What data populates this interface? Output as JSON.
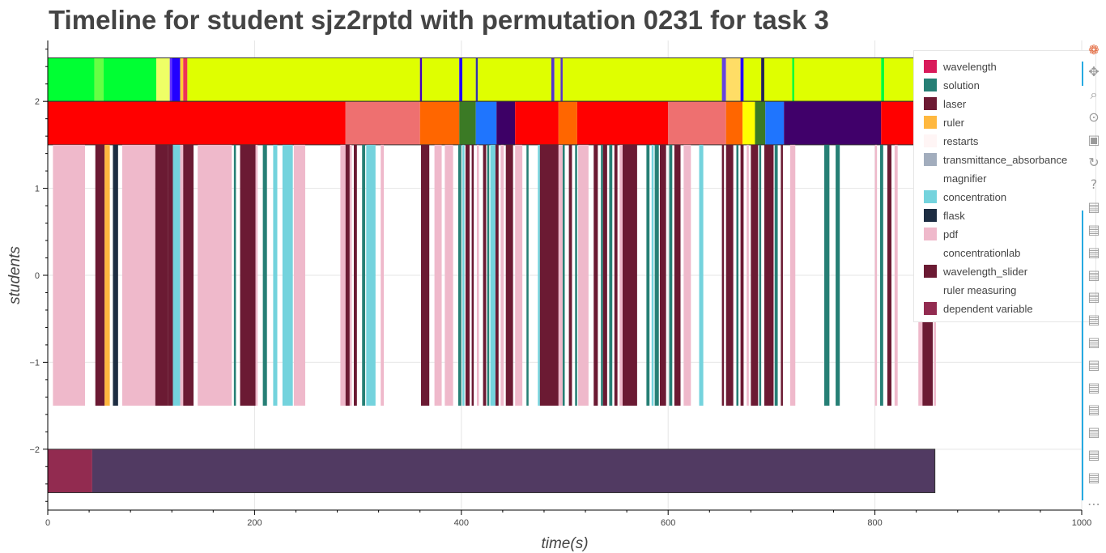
{
  "chart_data": {
    "type": "timeline",
    "title": "Timeline for student sjz2rptd with permutation 0231 for task 3",
    "xlabel": "time(s)",
    "ylabel": "students",
    "xlim": [
      0,
      1000
    ],
    "ylim": [
      -2.7,
      2.7
    ],
    "x_ticks": [
      0,
      200,
      400,
      600,
      800,
      1000
    ],
    "y_ticks": [
      {
        "value": 2,
        "label": "2"
      },
      {
        "value": 1,
        "label": "1"
      },
      {
        "value": 0,
        "label": "0"
      },
      {
        "value": -1,
        "label": "−1"
      },
      {
        "value": -2,
        "label": "−2"
      }
    ],
    "grid": true,
    "legend_position": "top-right",
    "legend": [
      {
        "name": "wavelength",
        "color": "#d91a5a"
      },
      {
        "name": "solution",
        "color": "#267f75"
      },
      {
        "name": "laser",
        "color": "#6d1a33"
      },
      {
        "name": "ruler",
        "color": "#ffb83f"
      },
      {
        "name": "restarts",
        "color": "#fff5f5"
      },
      {
        "name": "transmittance_absorbance",
        "color": "#a2adbd"
      },
      {
        "name": "magnifier",
        "color": "#ffffff"
      },
      {
        "name": "concentration",
        "color": "#74d3dd"
      },
      {
        "name": "flask",
        "color": "#1d2d42"
      },
      {
        "name": "pdf",
        "color": "#efb9cb"
      },
      {
        "name": "concentrationlab",
        "color": "#ffffff"
      },
      {
        "name": "wavelength_slider",
        "color": "#6b1a33"
      },
      {
        "name": "ruler measuring",
        "color": "#ffffff"
      },
      {
        "name": "dependent variable",
        "color": "#922b50"
      }
    ],
    "lanes": [
      {
        "y_range": [
          2,
          2.5
        ],
        "outline_end": 860,
        "segments": [
          {
            "start": 0,
            "end": 45,
            "color": "#00ff33"
          },
          {
            "start": 45,
            "end": 54,
            "color": "#66ff44"
          },
          {
            "start": 54,
            "end": 105,
            "color": "#00ff33"
          },
          {
            "start": 105,
            "end": 118,
            "color": "#eeff66"
          },
          {
            "start": 118,
            "end": 120,
            "color": "#6633ff"
          },
          {
            "start": 120,
            "end": 128,
            "color": "#2200ff"
          },
          {
            "start": 128,
            "end": 131,
            "color": "#ffcc33"
          },
          {
            "start": 131,
            "end": 135,
            "color": "#ee3355"
          },
          {
            "start": 135,
            "end": 360,
            "color": "#dfff00"
          },
          {
            "start": 360,
            "end": 362,
            "color": "#4400bb"
          },
          {
            "start": 362,
            "end": 398,
            "color": "#dfff00"
          },
          {
            "start": 398,
            "end": 401,
            "color": "#2200ff"
          },
          {
            "start": 401,
            "end": 414,
            "color": "#dfff00"
          },
          {
            "start": 414,
            "end": 416,
            "color": "#3333aa"
          },
          {
            "start": 416,
            "end": 487,
            "color": "#dfff00"
          },
          {
            "start": 487,
            "end": 490,
            "color": "#5533cc"
          },
          {
            "start": 490,
            "end": 496,
            "color": "#dfff00"
          },
          {
            "start": 496,
            "end": 498,
            "color": "#5533cc"
          },
          {
            "start": 498,
            "end": 652,
            "color": "#dfff00"
          },
          {
            "start": 652,
            "end": 656,
            "color": "#6644dd"
          },
          {
            "start": 656,
            "end": 670,
            "color": "#ffdd66"
          },
          {
            "start": 670,
            "end": 673,
            "color": "#2200ff"
          },
          {
            "start": 673,
            "end": 690,
            "color": "#dfff00"
          },
          {
            "start": 690,
            "end": 693,
            "color": "#222255"
          },
          {
            "start": 693,
            "end": 720,
            "color": "#dfff00"
          },
          {
            "start": 720,
            "end": 722,
            "color": "#00ff33"
          },
          {
            "start": 722,
            "end": 806,
            "color": "#dfff00"
          },
          {
            "start": 806,
            "end": 809,
            "color": "#00ff33"
          },
          {
            "start": 809,
            "end": 860,
            "color": "#dfff00"
          }
        ]
      },
      {
        "y_range": [
          1.5,
          2
        ],
        "outline_end": 860,
        "segments": [
          {
            "start": 0,
            "end": 288,
            "color": "#ff0000"
          },
          {
            "start": 288,
            "end": 360,
            "color": "#ee7070"
          },
          {
            "start": 360,
            "end": 398,
            "color": "#ff6600"
          },
          {
            "start": 398,
            "end": 414,
            "color": "#3b7a25"
          },
          {
            "start": 414,
            "end": 434,
            "color": "#1f75fe"
          },
          {
            "start": 434,
            "end": 452,
            "color": "#3d0066"
          },
          {
            "start": 452,
            "end": 494,
            "color": "#ff0000"
          },
          {
            "start": 494,
            "end": 512,
            "color": "#ff6600"
          },
          {
            "start": 512,
            "end": 600,
            "color": "#ff0000"
          },
          {
            "start": 600,
            "end": 656,
            "color": "#ee7070"
          },
          {
            "start": 656,
            "end": 672,
            "color": "#ff6600"
          },
          {
            "start": 672,
            "end": 684,
            "color": "#ffff00"
          },
          {
            "start": 684,
            "end": 694,
            "color": "#3b7a25"
          },
          {
            "start": 694,
            "end": 712,
            "color": "#1f75fe"
          },
          {
            "start": 712,
            "end": 806,
            "color": "#40006a"
          },
          {
            "start": 806,
            "end": 860,
            "color": "#ff0000"
          }
        ]
      },
      {
        "y_range": [
          -1.5,
          1.5
        ],
        "segments": [
          {
            "start": 5,
            "end": 36,
            "color": "#efb9cb"
          },
          {
            "start": 46,
            "end": 55,
            "color": "#6b1a33"
          },
          {
            "start": 55,
            "end": 60,
            "color": "#ffb83f"
          },
          {
            "start": 63,
            "end": 68,
            "color": "#1d2d42"
          },
          {
            "start": 72,
            "end": 104,
            "color": "#efb9cb"
          },
          {
            "start": 104,
            "end": 116,
            "color": "#6b1a33"
          },
          {
            "start": 116,
            "end": 121,
            "color": "#6b1a33"
          },
          {
            "start": 121,
            "end": 128,
            "color": "#74d3dd"
          },
          {
            "start": 128,
            "end": 131,
            "color": "#efb9cb"
          },
          {
            "start": 131,
            "end": 141,
            "color": "#6b1a33"
          },
          {
            "start": 145,
            "end": 178,
            "color": "#efb9cb"
          },
          {
            "start": 180,
            "end": 182,
            "color": "#267f75"
          },
          {
            "start": 186,
            "end": 201,
            "color": "#6b1a33"
          },
          {
            "start": 201,
            "end": 203,
            "color": "#efb9cb"
          },
          {
            "start": 208,
            "end": 212,
            "color": "#267f75"
          },
          {
            "start": 218,
            "end": 222,
            "color": "#74d3dd"
          },
          {
            "start": 227,
            "end": 237,
            "color": "#74d3dd"
          },
          {
            "start": 238,
            "end": 249,
            "color": "#efb9cb"
          },
          {
            "start": 283,
            "end": 288,
            "color": "#efb9cb"
          },
          {
            "start": 288,
            "end": 292,
            "color": "#6b1a33"
          },
          {
            "start": 292,
            "end": 294,
            "color": "#efb9cb"
          },
          {
            "start": 296,
            "end": 299,
            "color": "#6b1a33"
          },
          {
            "start": 304,
            "end": 307,
            "color": "#267f75"
          },
          {
            "start": 308,
            "end": 317,
            "color": "#74d3dd"
          },
          {
            "start": 322,
            "end": 325,
            "color": "#efb9cb"
          },
          {
            "start": 361,
            "end": 369,
            "color": "#6b1a33"
          },
          {
            "start": 374,
            "end": 381,
            "color": "#efb9cb"
          },
          {
            "start": 384,
            "end": 392,
            "color": "#efb9cb"
          },
          {
            "start": 397,
            "end": 400,
            "color": "#267f75"
          },
          {
            "start": 401,
            "end": 403,
            "color": "#74d3dd"
          },
          {
            "start": 404,
            "end": 408,
            "color": "#6b1a33"
          },
          {
            "start": 410,
            "end": 412,
            "color": "#6b1a33"
          },
          {
            "start": 415,
            "end": 417,
            "color": "#efb9cb"
          },
          {
            "start": 421,
            "end": 424,
            "color": "#6b1a33"
          },
          {
            "start": 425,
            "end": 427,
            "color": "#267f75"
          },
          {
            "start": 428,
            "end": 433,
            "color": "#74d3dd"
          },
          {
            "start": 433,
            "end": 436,
            "color": "#6b1a33"
          },
          {
            "start": 438,
            "end": 441,
            "color": "#efb9cb"
          },
          {
            "start": 443,
            "end": 450,
            "color": "#6b1a33"
          },
          {
            "start": 452,
            "end": 459,
            "color": "#efb9cb"
          },
          {
            "start": 463,
            "end": 465,
            "color": "#267f75"
          },
          {
            "start": 474,
            "end": 476,
            "color": "#74d3dd"
          },
          {
            "start": 476,
            "end": 494,
            "color": "#6b1a33"
          },
          {
            "start": 494,
            "end": 498,
            "color": "#efb9cb"
          },
          {
            "start": 498,
            "end": 500,
            "color": "#267f75"
          },
          {
            "start": 504,
            "end": 507,
            "color": "#6b1a33"
          },
          {
            "start": 510,
            "end": 512,
            "color": "#267f75"
          },
          {
            "start": 513,
            "end": 523,
            "color": "#efb9cb"
          },
          {
            "start": 528,
            "end": 532,
            "color": "#6b1a33"
          },
          {
            "start": 535,
            "end": 537,
            "color": "#267f75"
          },
          {
            "start": 537,
            "end": 541,
            "color": "#6b1a33"
          },
          {
            "start": 543,
            "end": 546,
            "color": "#267f75"
          },
          {
            "start": 548,
            "end": 551,
            "color": "#6b1a33"
          },
          {
            "start": 553,
            "end": 556,
            "color": "#efb9cb"
          },
          {
            "start": 556,
            "end": 570,
            "color": "#6b1a33"
          },
          {
            "start": 579,
            "end": 582,
            "color": "#267f75"
          },
          {
            "start": 584,
            "end": 586,
            "color": "#74d3dd"
          },
          {
            "start": 587,
            "end": 591,
            "color": "#267f75"
          },
          {
            "start": 592,
            "end": 598,
            "color": "#6b1a33"
          },
          {
            "start": 601,
            "end": 604,
            "color": "#267f75"
          },
          {
            "start": 606,
            "end": 612,
            "color": "#6b1a33"
          },
          {
            "start": 615,
            "end": 622,
            "color": "#efb9cb"
          },
          {
            "start": 630,
            "end": 634,
            "color": "#74d3dd"
          },
          {
            "start": 652,
            "end": 654,
            "color": "#6b1a33"
          },
          {
            "start": 656,
            "end": 663,
            "color": "#6b1a33"
          },
          {
            "start": 666,
            "end": 668,
            "color": "#267f75"
          },
          {
            "start": 670,
            "end": 673,
            "color": "#6b1a33"
          },
          {
            "start": 676,
            "end": 678,
            "color": "#efb9cb"
          },
          {
            "start": 680,
            "end": 687,
            "color": "#6b1a33"
          },
          {
            "start": 688,
            "end": 690,
            "color": "#267f75"
          },
          {
            "start": 693,
            "end": 702,
            "color": "#6b1a33"
          },
          {
            "start": 703,
            "end": 706,
            "color": "#267f75"
          },
          {
            "start": 709,
            "end": 711,
            "color": "#6b1a33"
          },
          {
            "start": 718,
            "end": 723,
            "color": "#efb9cb"
          },
          {
            "start": 751,
            "end": 756,
            "color": "#267f75"
          },
          {
            "start": 762,
            "end": 766,
            "color": "#267f75"
          },
          {
            "start": 800,
            "end": 802,
            "color": "#efb9cb"
          },
          {
            "start": 805,
            "end": 808,
            "color": "#267f75"
          },
          {
            "start": 812,
            "end": 816,
            "color": "#6b1a33"
          },
          {
            "start": 819,
            "end": 822,
            "color": "#efb9cb"
          },
          {
            "start": 842,
            "end": 846,
            "color": "#efb9cb"
          },
          {
            "start": 846,
            "end": 856,
            "color": "#6b1a33"
          },
          {
            "start": 857,
            "end": 859,
            "color": "#efb9cb"
          }
        ]
      },
      {
        "y_range": [
          -2.5,
          -2
        ],
        "outline_end": 858,
        "segments": [
          {
            "start": 0,
            "end": 43,
            "color": "#922b50"
          },
          {
            "start": 43,
            "end": 858,
            "color": "#513a62"
          }
        ]
      }
    ]
  },
  "toolbar": {
    "tools": [
      {
        "name": "bokeh-logo-icon",
        "glyph": "❁"
      },
      {
        "name": "pan-icon",
        "glyph": "✥"
      },
      {
        "name": "box-zoom-icon",
        "glyph": "⌕"
      },
      {
        "name": "wheel-zoom-icon",
        "glyph": "⊙"
      },
      {
        "name": "save-icon",
        "glyph": "▣"
      },
      {
        "name": "reset-icon",
        "glyph": "↻"
      },
      {
        "name": "help-icon",
        "glyph": "?"
      },
      {
        "name": "hover-icon",
        "glyph": "▤"
      },
      {
        "name": "hover-icon",
        "glyph": "▤"
      },
      {
        "name": "hover-icon",
        "glyph": "▤"
      },
      {
        "name": "hover-icon",
        "glyph": "▤"
      },
      {
        "name": "hover-icon",
        "glyph": "▤"
      },
      {
        "name": "hover-icon",
        "glyph": "▤"
      },
      {
        "name": "hover-icon",
        "glyph": "▤"
      },
      {
        "name": "hover-icon",
        "glyph": "▤"
      },
      {
        "name": "hover-icon",
        "glyph": "▤"
      },
      {
        "name": "hover-icon",
        "glyph": "▤"
      },
      {
        "name": "hover-icon",
        "glyph": "▤"
      },
      {
        "name": "hover-icon",
        "glyph": "▤"
      },
      {
        "name": "hover-icon",
        "glyph": "▤"
      },
      {
        "name": "more-icon",
        "glyph": "⋯"
      }
    ]
  }
}
